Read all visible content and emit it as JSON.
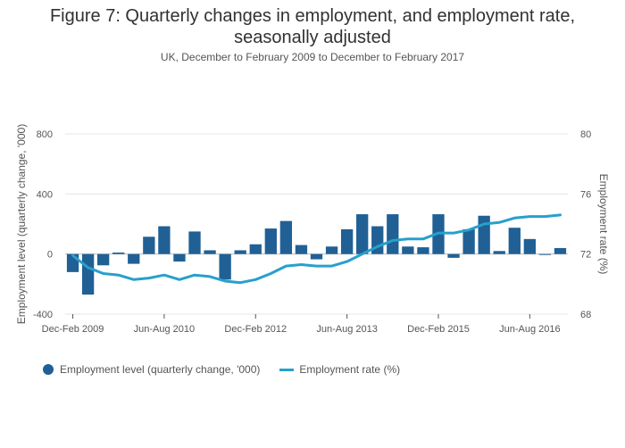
{
  "title": "Figure 7: Quarterly changes in employment, and employment rate, seasonally adjusted",
  "title_line1": "Figure 7: Quarterly changes in employment, and employment rate,",
  "title_line2": "seasonally adjusted",
  "subtitle": "UK, December to February 2009 to December to February 2017",
  "colors": {
    "bar": "#206095",
    "line": "#27a0cc",
    "grid": "#e5e5e5",
    "axis": "#cccccc"
  },
  "chart_data": {
    "type": "bar+line",
    "x_tick_labels": [
      "Dec-Feb 2009",
      "Jun-Aug 2010",
      "Dec-Feb 2012",
      "Jun-Aug 2013",
      "Dec-Feb 2015",
      "Jun-Aug 2016"
    ],
    "x_tick_indices": [
      0,
      6,
      12,
      18,
      24,
      30
    ],
    "y_left": {
      "label": "Employment level (quarterly change, '000)",
      "ticks": [
        -400,
        0,
        400,
        800
      ],
      "range": [
        -400,
        800
      ]
    },
    "y_right": {
      "label": "Employment rate (%)",
      "ticks": [
        68,
        72,
        76,
        80
      ],
      "range": [
        68,
        80
      ]
    },
    "series": [
      {
        "name": "Employment level (quarterly change, '000)",
        "type": "bar",
        "axis": "left",
        "values": [
          -120,
          -270,
          -75,
          10,
          -65,
          115,
          185,
          -50,
          150,
          25,
          -170,
          25,
          65,
          170,
          220,
          60,
          -35,
          50,
          165,
          265,
          185,
          265,
          50,
          45,
          265,
          -25,
          165,
          255,
          20,
          175,
          100,
          -5,
          40
        ]
      },
      {
        "name": "Employment rate (%)",
        "type": "line",
        "axis": "right",
        "values": [
          71.9,
          71.1,
          70.7,
          70.6,
          70.3,
          70.4,
          70.6,
          70.3,
          70.6,
          70.5,
          70.2,
          70.1,
          70.3,
          70.7,
          71.2,
          71.3,
          71.2,
          71.2,
          71.5,
          72.0,
          72.5,
          72.9,
          73.0,
          73.0,
          73.4,
          73.4,
          73.6,
          74.0,
          74.1,
          74.4,
          74.5,
          74.5,
          74.6
        ]
      }
    ]
  }
}
